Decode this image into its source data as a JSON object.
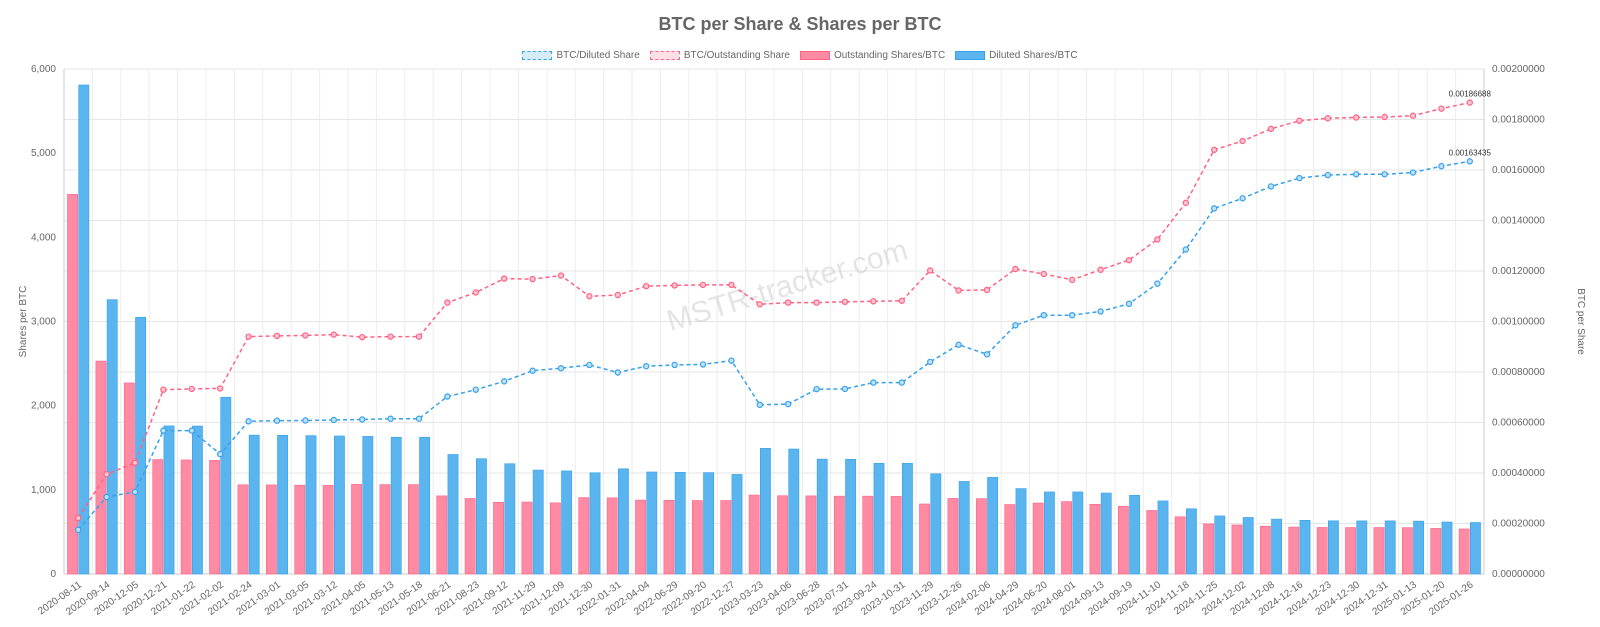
{
  "chart_data": {
    "type": "bar",
    "title": "BTC per Share & Shares per BTC",
    "watermark": "MSTR-tracker.com",
    "ylabel_left": "Shares per BTC",
    "ylabel_right": "BTC per Share",
    "ylim_left": [
      0,
      6000
    ],
    "ylim_right": [
      0,
      0.002
    ],
    "left_ticks": [
      "0",
      "1,000",
      "2,000",
      "3,000",
      "4,000",
      "5,000",
      "6,000"
    ],
    "right_ticks": [
      "0.00000000",
      "0.00020000",
      "0.00040000",
      "0.00060000",
      "0.00080000",
      "0.00100000",
      "0.00120000",
      "0.00140000",
      "0.00160000",
      "0.00180000",
      "0.00200000"
    ],
    "grid": true,
    "legend_position": "top",
    "categories": [
      "2020-08-11",
      "2020-09-14",
      "2020-12-05",
      "2020-12-21",
      "2021-01-22",
      "2021-02-02",
      "2021-02-24",
      "2021-03-01",
      "2021-03-05",
      "2021-03-12",
      "2021-04-05",
      "2021-05-13",
      "2021-05-18",
      "2021-06-21",
      "2021-08-23",
      "2021-09-12",
      "2021-11-29",
      "2021-12-09",
      "2021-12-30",
      "2022-01-31",
      "2022-04-04",
      "2022-06-29",
      "2022-09-20",
      "2022-12-27",
      "2023-03-23",
      "2023-04-06",
      "2023-06-28",
      "2023-07-31",
      "2023-09-24",
      "2023-10-31",
      "2023-11-29",
      "2023-12-26",
      "2024-02-06",
      "2024-04-29",
      "2024-06-20",
      "2024-08-01",
      "2024-09-13",
      "2024-09-19",
      "2024-11-10",
      "2024-11-18",
      "2024-11-25",
      "2024-12-02",
      "2024-12-08",
      "2024-12-16",
      "2024-12-23",
      "2024-12-30",
      "2024-12-31",
      "2025-01-13",
      "2025-01-20",
      "2025-01-26"
    ],
    "series": [
      {
        "name": "BTC/Diluted Share",
        "type": "line",
        "axis": "right",
        "color": "#36a2eb",
        "values": [
          0.000175,
          0.000305,
          0.000325,
          0.000568,
          0.000568,
          0.000475,
          0.000605,
          0.000607,
          0.000608,
          0.00061,
          0.000612,
          0.000615,
          0.000615,
          0.000703,
          0.00073,
          0.000763,
          0.000805,
          0.000815,
          0.000828,
          0.000798,
          0.000823,
          0.000828,
          0.00083,
          0.000845,
          0.00067,
          0.000673,
          0.000732,
          0.000733,
          0.000758,
          0.000758,
          0.00084,
          0.000908,
          0.00087,
          0.000985,
          0.001025,
          0.001025,
          0.00104,
          0.00107,
          0.00115,
          0.001285,
          0.001448,
          0.001488,
          0.001535,
          0.001568,
          0.00158,
          0.001583,
          0.001583,
          0.00159,
          0.001615,
          0.00163435
        ]
      },
      {
        "name": "BTC/Outstanding Share",
        "type": "line",
        "axis": "right",
        "color": "#ff6384",
        "values": [
          0.000222,
          0.000395,
          0.00044,
          0.00073,
          0.000733,
          0.000735,
          0.00094,
          0.000943,
          0.000945,
          0.000948,
          0.000938,
          0.00094,
          0.00094,
          0.001075,
          0.001115,
          0.00117,
          0.001168,
          0.001182,
          0.0011,
          0.001105,
          0.00114,
          0.001143,
          0.001145,
          0.001145,
          0.001068,
          0.001075,
          0.001075,
          0.001078,
          0.00108,
          0.001082,
          0.001202,
          0.001123,
          0.001125,
          0.001208,
          0.001188,
          0.001165,
          0.001205,
          0.001243,
          0.001325,
          0.00147,
          0.00168,
          0.001715,
          0.001763,
          0.001795,
          0.001805,
          0.001808,
          0.00181,
          0.001815,
          0.001843,
          0.00186688
        ]
      },
      {
        "name": "Outstanding Shares/BTC",
        "type": "bar",
        "axis": "left",
        "color": "#ff6384",
        "values": [
          4510,
          2530,
          2270,
          1360,
          1355,
          1350,
          1060,
          1058,
          1055,
          1053,
          1065,
          1062,
          1062,
          928,
          897,
          852,
          855,
          845,
          908,
          905,
          878,
          875,
          873,
          873,
          938,
          930,
          928,
          925,
          925,
          922,
          832,
          898,
          895,
          825,
          843,
          860,
          828,
          805,
          755,
          680,
          595,
          583,
          568,
          557,
          553,
          552,
          552,
          551,
          542,
          535
        ]
      },
      {
        "name": "Diluted Shares/BTC",
        "type": "bar",
        "axis": "left",
        "color": "#36a2eb",
        "values": [
          5810,
          3260,
          3050,
          1760,
          1758,
          2100,
          1650,
          1648,
          1644,
          1640,
          1635,
          1625,
          1625,
          1420,
          1370,
          1310,
          1235,
          1225,
          1203,
          1250,
          1212,
          1208,
          1205,
          1183,
          1493,
          1485,
          1365,
          1363,
          1315,
          1315,
          1190,
          1100,
          1148,
          1015,
          975,
          975,
          962,
          935,
          868,
          775,
          690,
          672,
          652,
          638,
          632,
          631,
          631,
          628,
          618,
          612
        ]
      }
    ],
    "annotations": [
      "0.00186688",
      "0.00163435"
    ]
  }
}
